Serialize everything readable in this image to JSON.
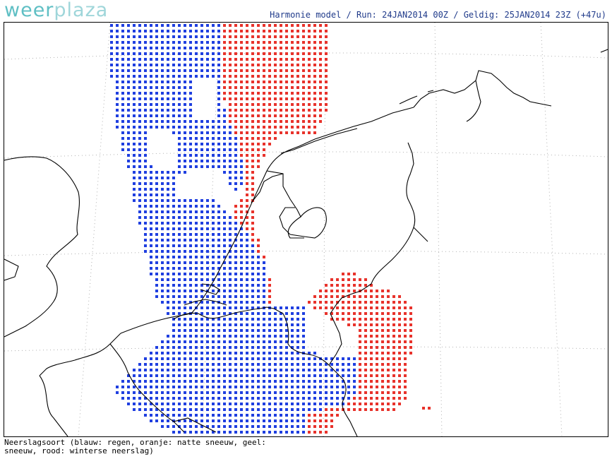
{
  "brand": {
    "logo_part1": "weer",
    "logo_part2": "plaza"
  },
  "header": {
    "title": "Harmonie model / Run: 24JAN2014 00Z / Geldig: 25JAN2014 23Z (+47u)"
  },
  "legend": {
    "line1": "Neerslagsoort (blauw: regen, oranje: natte sneeuw, geel:",
    "line2": "sneeuw, rood: winterse neerslag)"
  },
  "colors": {
    "rain": "#1f3fe0",
    "winter_precip": "#e8322b",
    "coast": "#000000",
    "grid": "#b0b0b0"
  },
  "map": {
    "precip_types": [
      "rain",
      "winter_precip"
    ]
  }
}
